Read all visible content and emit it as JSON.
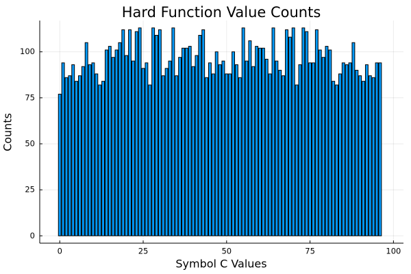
{
  "chart_data": {
    "type": "bar",
    "title": "Hard Function Value Counts",
    "xlabel": "Symbol C Values",
    "ylabel": "Counts",
    "xlim": [
      -6,
      103
    ],
    "ylim": [
      -4,
      117
    ],
    "xticks": [
      0,
      25,
      50,
      75,
      100
    ],
    "yticks": [
      0,
      25,
      50,
      75,
      100
    ],
    "grid": true,
    "legend": "none",
    "bar_color": "#009AFA",
    "x": [
      0,
      1,
      2,
      3,
      4,
      5,
      6,
      7,
      8,
      9,
      10,
      11,
      12,
      13,
      14,
      15,
      16,
      17,
      18,
      19,
      20,
      21,
      22,
      23,
      24,
      25,
      26,
      27,
      28,
      29,
      30,
      31,
      32,
      33,
      34,
      35,
      36,
      37,
      38,
      39,
      40,
      41,
      42,
      43,
      44,
      45,
      46,
      47,
      48,
      49,
      50,
      51,
      52,
      53,
      54,
      55,
      56,
      57,
      58,
      59,
      60,
      61,
      62,
      63,
      64,
      65,
      66,
      67,
      68,
      69,
      70,
      71,
      72,
      73,
      74,
      75,
      76,
      77,
      78,
      79,
      80,
      81,
      82,
      83,
      84,
      85,
      86,
      87,
      88,
      89,
      90,
      91,
      92,
      93,
      94,
      95,
      96
    ],
    "values": [
      77,
      94,
      86,
      87,
      93,
      84,
      87,
      92,
      105,
      93,
      94,
      88,
      82,
      84,
      101,
      103,
      97,
      101,
      105,
      112,
      98,
      112,
      95,
      111,
      113,
      91,
      94,
      82,
      113,
      109,
      112,
      87,
      91,
      95,
      113,
      87,
      97,
      102,
      102,
      103,
      92,
      98,
      109,
      112,
      86,
      94,
      88,
      100,
      93,
      95,
      88,
      88,
      100,
      93,
      86,
      113,
      95,
      106,
      92,
      103,
      102,
      102,
      96,
      88,
      113,
      95,
      90,
      87,
      112,
      108,
      113,
      82,
      93,
      113,
      111,
      94,
      94,
      112,
      101,
      97,
      103,
      101,
      84,
      82,
      88,
      94,
      93,
      94,
      105,
      90,
      87,
      84,
      93,
      87,
      86,
      94,
      94
    ]
  }
}
